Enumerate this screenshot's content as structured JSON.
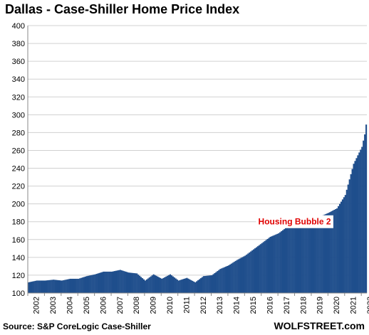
{
  "title": "Dallas - Case-Shiller Home Price Index",
  "source": "Source: S&P CoreLogic Case-Shiller",
  "watermark": "WOLFSTREET.com",
  "colors": {
    "bar": "#1f4e8c",
    "grid": "#d0d0d0",
    "annotation": "#e00000"
  },
  "chart_data": {
    "type": "bar",
    "title": "Dallas - Case-Shiller Home Price Index",
    "xlabel": "",
    "ylabel": "",
    "ylim": [
      100,
      400
    ],
    "yticks": [
      100,
      120,
      140,
      160,
      180,
      200,
      220,
      240,
      260,
      280,
      300,
      320,
      340,
      360,
      380,
      400
    ],
    "year_labels": [
      "2002",
      "2003",
      "2004",
      "2005",
      "2006",
      "2007",
      "2008",
      "2009",
      "2010",
      "2011",
      "2012",
      "2013",
      "2014",
      "2015",
      "2016",
      "2017",
      "2018",
      "2019",
      "2020",
      "2021",
      "2022"
    ],
    "start": "2002-01",
    "frequency": "monthly",
    "grid": true,
    "legend": "none",
    "annotations": [
      {
        "text": "Housing Bubble 2",
        "date": "2018-01",
        "y": 180
      }
    ],
    "anchors": [
      [
        "2002-01",
        112
      ],
      [
        "2002-07",
        114
      ],
      [
        "2003-01",
        114
      ],
      [
        "2003-07",
        115
      ],
      [
        "2004-01",
        114
      ],
      [
        "2004-07",
        116
      ],
      [
        "2005-01",
        116
      ],
      [
        "2005-07",
        119
      ],
      [
        "2006-01",
        121
      ],
      [
        "2006-07",
        124
      ],
      [
        "2007-01",
        124
      ],
      [
        "2007-07",
        126
      ],
      [
        "2008-01",
        123
      ],
      [
        "2008-07",
        122
      ],
      [
        "2009-01",
        114
      ],
      [
        "2009-07",
        121
      ],
      [
        "2010-01",
        116
      ],
      [
        "2010-07",
        121
      ],
      [
        "2011-01",
        114
      ],
      [
        "2011-07",
        117
      ],
      [
        "2012-01",
        112
      ],
      [
        "2012-07",
        119
      ],
      [
        "2013-01",
        120
      ],
      [
        "2013-07",
        127
      ],
      [
        "2014-01",
        131
      ],
      [
        "2014-07",
        137
      ],
      [
        "2015-01",
        142
      ],
      [
        "2015-07",
        149
      ],
      [
        "2016-01",
        156
      ],
      [
        "2016-07",
        163
      ],
      [
        "2017-01",
        167
      ],
      [
        "2017-07",
        174
      ],
      [
        "2018-01",
        177
      ],
      [
        "2018-07",
        182
      ],
      [
        "2019-01",
        181
      ],
      [
        "2019-07",
        186
      ],
      [
        "2020-01",
        190
      ],
      [
        "2020-07",
        195
      ],
      [
        "2021-01",
        210
      ],
      [
        "2021-07",
        245
      ],
      [
        "2022-01",
        264
      ],
      [
        "2022-03",
        278
      ],
      [
        "2022-04",
        289
      ]
    ]
  }
}
